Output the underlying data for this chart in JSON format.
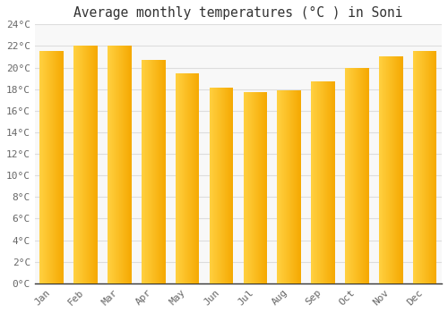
{
  "title": "Average monthly temperatures (°C ) in Soni",
  "months": [
    "Jan",
    "Feb",
    "Mar",
    "Apr",
    "May",
    "Jun",
    "Jul",
    "Aug",
    "Sep",
    "Oct",
    "Nov",
    "Dec"
  ],
  "values": [
    21.5,
    22.0,
    22.0,
    20.7,
    19.5,
    18.1,
    17.7,
    17.9,
    18.7,
    20.0,
    21.0,
    21.5
  ],
  "bar_color_left": "#FFD040",
  "bar_color_right": "#F5A800",
  "ylim": [
    0,
    24
  ],
  "ytick_step": 2,
  "background_color": "#FFFFFF",
  "plot_bg_color": "#F8F8F8",
  "grid_color": "#DDDDDD",
  "title_fontsize": 10.5,
  "tick_fontsize": 8,
  "font_family": "monospace"
}
